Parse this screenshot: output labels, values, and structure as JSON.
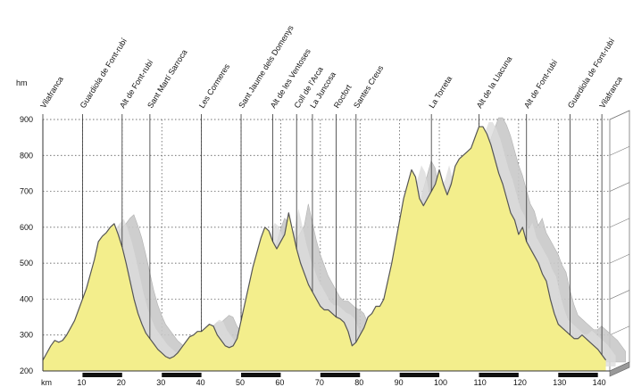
{
  "chart_data": {
    "type": "area",
    "title": "",
    "xlabel": "km",
    "ylabel": "hm",
    "xlim": [
      0,
      143
    ],
    "ylim": [
      200,
      900
    ],
    "x_ticks": [
      10,
      20,
      30,
      40,
      50,
      60,
      70,
      80,
      90,
      100,
      110,
      120,
      130,
      140
    ],
    "x_unit_label": "km",
    "y_unit_label": "hm",
    "y_ticks": [
      200,
      300,
      400,
      500,
      600,
      700,
      800,
      900
    ],
    "grid": true,
    "colors": {
      "fill": "#F3EE8C",
      "shadow": "#C9C9C9",
      "line": "#555555",
      "grid": "#444444",
      "marker": "#7F7F7F"
    },
    "series": [
      {
        "x": [
          0,
          1,
          2,
          3,
          4,
          5,
          6,
          7,
          8,
          9,
          10,
          11,
          12,
          13,
          14,
          15,
          16,
          17,
          18,
          19,
          20,
          21,
          22,
          23,
          24,
          25,
          26,
          27,
          28,
          29,
          30,
          31,
          32,
          33,
          34,
          35,
          36,
          37,
          38,
          39,
          40,
          41,
          42,
          43,
          44,
          45,
          46,
          47,
          48,
          49,
          50,
          51,
          52,
          53,
          54,
          55,
          56,
          57,
          58,
          59,
          60,
          61,
          62,
          63,
          64,
          65,
          66,
          67,
          68,
          69,
          70,
          71,
          72,
          73,
          74,
          75,
          76,
          77,
          78,
          79,
          80,
          81,
          82,
          83,
          84,
          85,
          86,
          87,
          88,
          89,
          90,
          91,
          92,
          93,
          94,
          95,
          96,
          97,
          98,
          99,
          100,
          101,
          102,
          103,
          104,
          105,
          106,
          107,
          108,
          109,
          110,
          111,
          112,
          113,
          114,
          115,
          116,
          117,
          118,
          119,
          120,
          121,
          122,
          123,
          124,
          125,
          126,
          127,
          128,
          129,
          130,
          131,
          132,
          133,
          134,
          135,
          136,
          137,
          138,
          139,
          140,
          141,
          142
        ],
        "y": [
          230,
          250,
          270,
          285,
          280,
          285,
          300,
          320,
          340,
          370,
          400,
          430,
          470,
          510,
          560,
          575,
          585,
          600,
          610,
          580,
          545,
          500,
          450,
          400,
          360,
          330,
          305,
          290,
          275,
          260,
          250,
          240,
          235,
          240,
          250,
          265,
          280,
          295,
          300,
          310,
          310,
          320,
          330,
          325,
          300,
          285,
          270,
          265,
          270,
          290,
          340,
          390,
          440,
          490,
          530,
          570,
          600,
          590,
          560,
          540,
          560,
          580,
          640,
          590,
          540,
          500,
          470,
          440,
          420,
          400,
          380,
          370,
          370,
          360,
          350,
          345,
          335,
          310,
          270,
          280,
          300,
          320,
          350,
          360,
          380,
          380,
          400,
          450,
          500,
          560,
          620,
          680,
          720,
          760,
          740,
          680,
          660,
          680,
          700,
          720,
          760,
          720,
          690,
          720,
          770,
          790,
          800,
          810,
          820,
          850,
          880,
          880,
          860,
          830,
          790,
          750,
          720,
          680,
          640,
          620,
          580,
          600,
          560,
          540,
          520,
          500,
          470,
          450,
          400,
          360,
          330,
          320,
          310,
          300,
          290,
          290,
          300,
          290,
          280,
          270,
          260,
          245,
          230
        ]
      }
    ],
    "waypoints": [
      {
        "label": "Vilafranca",
        "km": 0
      },
      {
        "label": "Guardiola de Font-rubí",
        "km": 10
      },
      {
        "label": "Alt de Font-rubí",
        "km": 20
      },
      {
        "label": "Sant Martí Sarroca",
        "km": 27
      },
      {
        "label": "Les Cormeres",
        "km": 40
      },
      {
        "label": "Sant Jaume dels Domenys",
        "km": 50
      },
      {
        "label": "Alt de les Ventoses",
        "km": 58
      },
      {
        "label": "Coll de l'Arca",
        "km": 64
      },
      {
        "label": "La Juncosa",
        "km": 68
      },
      {
        "label": "Rocfort",
        "km": 74
      },
      {
        "label": "Santes Creus",
        "km": 79
      },
      {
        "label": "La Torreta",
        "km": 98
      },
      {
        "label": "Alt de la Llacuna",
        "km": 110
      },
      {
        "label": "Alt de Font-rubí",
        "km": 122
      },
      {
        "label": "Guardiola de Font-rubí",
        "km": 133
      },
      {
        "label": "Vilafranca",
        "km": 141
      }
    ],
    "legend": "none"
  }
}
